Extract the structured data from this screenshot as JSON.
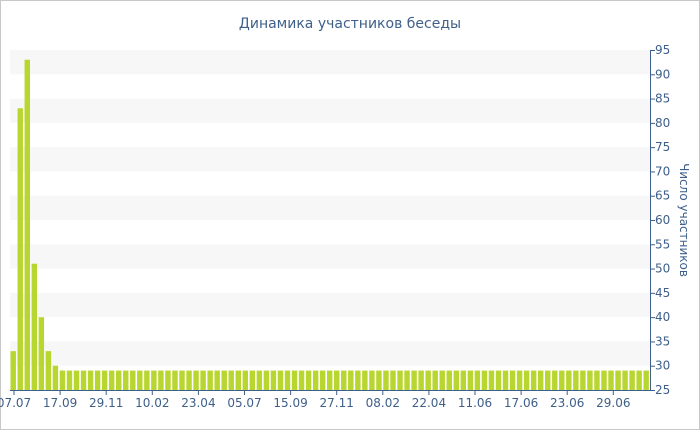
{
  "chart_data": {
    "type": "bar",
    "title": "Динамика участников беседы",
    "ylabel": "Число участников",
    "y_axis_side": "right",
    "ylim": [
      25,
      95
    ],
    "yticks": [
      25,
      30,
      35,
      40,
      45,
      50,
      55,
      60,
      65,
      70,
      75,
      80,
      85,
      90,
      95
    ],
    "xtick_labels": [
      "07.07",
      "17.09",
      "29.11",
      "10.02",
      "23.04",
      "05.07",
      "15.09",
      "27.11",
      "08.02",
      "22.04",
      "11.06",
      "17.06",
      "23.06",
      "29.06"
    ],
    "grid": "alternating horizontal bands",
    "colors": {
      "bar": "#b8d630",
      "band": "#f7f7f7",
      "text": "#3e5f8a",
      "axis": "#3e5f8a"
    },
    "values": [
      33,
      83,
      93,
      51,
      40,
      33,
      30,
      29,
      29,
      29,
      29,
      29,
      29,
      29,
      29,
      29,
      29,
      29,
      29,
      29,
      29,
      29,
      29,
      29,
      29,
      29,
      29,
      29,
      29,
      29,
      29,
      29,
      29,
      29,
      29,
      29,
      29,
      29,
      29,
      29,
      29,
      29,
      29,
      29,
      29,
      29,
      29,
      29,
      29,
      29,
      29,
      29,
      29,
      29,
      29,
      29,
      29,
      29,
      29,
      29,
      29,
      29,
      29,
      29,
      29,
      29,
      29,
      29,
      29,
      29,
      29,
      29,
      29,
      29,
      29,
      29,
      29,
      29,
      29,
      29,
      29,
      29,
      29,
      29,
      29,
      29,
      29,
      29,
      29,
      29,
      29
    ]
  }
}
